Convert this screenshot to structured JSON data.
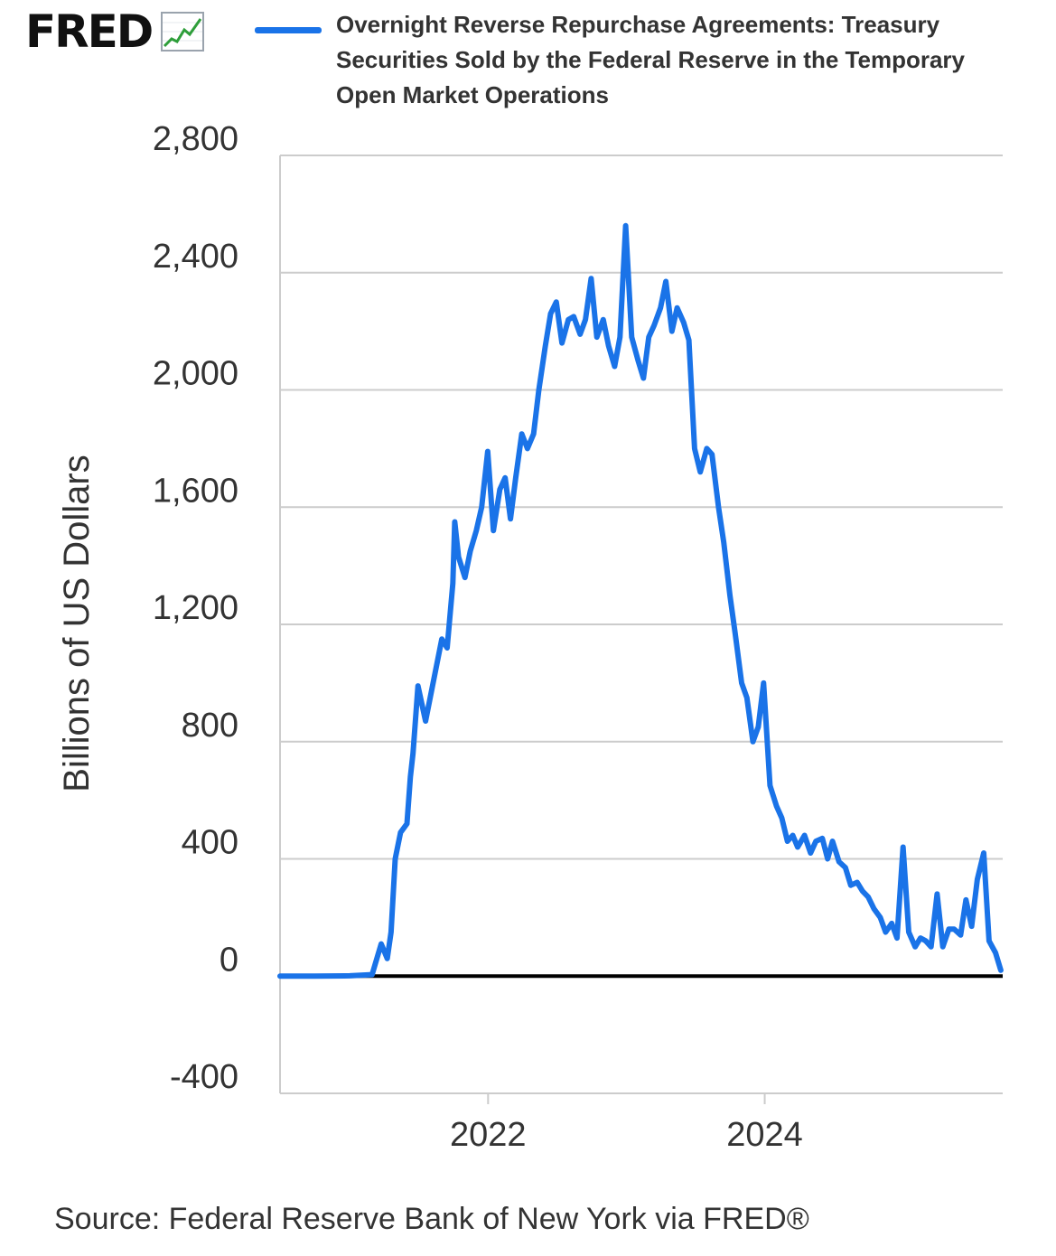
{
  "header": {
    "logo_text": "FRED",
    "logo_icon": "trend-line-icon"
  },
  "colors": {
    "series": "#1a73e8",
    "grid": "#cccccc",
    "zero_line": "#000000"
  },
  "chart_data": {
    "type": "line",
    "title": "",
    "xlabel": "",
    "ylabel": "Billions of US Dollars",
    "ylim": [
      -400,
      2800
    ],
    "xlim": [
      "2020-07-01",
      "2025-09-20"
    ],
    "y_ticks": [
      -400,
      0,
      400,
      800,
      1200,
      1600,
      2000,
      2400,
      2800
    ],
    "y_tick_labels": [
      "-400",
      "0",
      "400",
      "800",
      "1,200",
      "1,600",
      "2,000",
      "2,400",
      "2,800"
    ],
    "x_ticks": [
      "2022-01-01",
      "2024-01-01"
    ],
    "x_tick_labels": [
      "2022",
      "2024"
    ],
    "grid": true,
    "legend": "top",
    "series": [
      {
        "name": "Overnight Reverse Repurchase Agreements: Treasury Securities Sold by the Federal Reserve in the Temporary Open Market Operations",
        "x": [
          "2020-07-01",
          "2020-10-01",
          "2021-01-01",
          "2021-03-01",
          "2021-03-25",
          "2021-04-10",
          "2021-04-20",
          "2021-05-01",
          "2021-05-15",
          "2021-06-01",
          "2021-06-10",
          "2021-06-17",
          "2021-06-30",
          "2021-07-20",
          "2021-08-15",
          "2021-09-01",
          "2021-09-15",
          "2021-09-30",
          "2021-10-05",
          "2021-10-15",
          "2021-11-01",
          "2021-11-15",
          "2021-12-01",
          "2021-12-15",
          "2021-12-31",
          "2022-01-15",
          "2022-02-01",
          "2022-02-15",
          "2022-03-01",
          "2022-03-15",
          "2022-03-31",
          "2022-04-15",
          "2022-05-01",
          "2022-05-15",
          "2022-06-01",
          "2022-06-15",
          "2022-06-30",
          "2022-07-15",
          "2022-08-01",
          "2022-08-15",
          "2022-09-01",
          "2022-09-15",
          "2022-09-30",
          "2022-10-15",
          "2022-11-01",
          "2022-11-15",
          "2022-12-01",
          "2022-12-15",
          "2022-12-30",
          "2023-01-15",
          "2023-02-01",
          "2023-02-15",
          "2023-03-01",
          "2023-03-15",
          "2023-04-01",
          "2023-04-15",
          "2023-05-01",
          "2023-05-15",
          "2023-06-01",
          "2023-06-15",
          "2023-06-30",
          "2023-07-15",
          "2023-08-01",
          "2023-08-15",
          "2023-09-01",
          "2023-09-15",
          "2023-10-01",
          "2023-10-15",
          "2023-11-01",
          "2023-11-15",
          "2023-12-01",
          "2023-12-15",
          "2023-12-29",
          "2024-01-15",
          "2024-02-01",
          "2024-02-15",
          "2024-03-01",
          "2024-03-15",
          "2024-03-28",
          "2024-04-15",
          "2024-05-01",
          "2024-05-15",
          "2024-06-01",
          "2024-06-15",
          "2024-06-28",
          "2024-07-15",
          "2024-08-01",
          "2024-08-15",
          "2024-09-01",
          "2024-09-15",
          "2024-09-30",
          "2024-10-15",
          "2024-11-01",
          "2024-11-15",
          "2024-12-01",
          "2024-12-15",
          "2024-12-31",
          "2025-01-15",
          "2025-02-01",
          "2025-02-15",
          "2025-03-01",
          "2025-03-15",
          "2025-03-31",
          "2025-04-15",
          "2025-05-01",
          "2025-05-15",
          "2025-06-01",
          "2025-06-15",
          "2025-06-30",
          "2025-07-15",
          "2025-08-01",
          "2025-08-15",
          "2025-09-01",
          "2025-09-15"
        ],
        "values": [
          0,
          0,
          1,
          5,
          110,
          60,
          150,
          400,
          490,
          520,
          680,
          760,
          990,
          870,
          1040,
          1150,
          1120,
          1340,
          1550,
          1430,
          1360,
          1450,
          1520,
          1600,
          1790,
          1520,
          1660,
          1700,
          1560,
          1700,
          1850,
          1800,
          1850,
          2000,
          2150,
          2260,
          2300,
          2160,
          2240,
          2250,
          2190,
          2240,
          2380,
          2180,
          2240,
          2150,
          2080,
          2180,
          2560,
          2180,
          2100,
          2040,
          2180,
          2220,
          2280,
          2370,
          2200,
          2280,
          2230,
          2170,
          1800,
          1720,
          1800,
          1780,
          1600,
          1480,
          1300,
          1170,
          1000,
          950,
          800,
          850,
          1000,
          650,
          580,
          540,
          460,
          480,
          440,
          480,
          420,
          460,
          470,
          400,
          460,
          390,
          370,
          310,
          320,
          290,
          270,
          230,
          200,
          150,
          180,
          130,
          440,
          150,
          100,
          130,
          120,
          100,
          280,
          100,
          160,
          160,
          140,
          260,
          170,
          330,
          420,
          120,
          80,
          20
        ]
      }
    ]
  },
  "source": "Source: Federal Reserve Bank of New York via FRED®"
}
